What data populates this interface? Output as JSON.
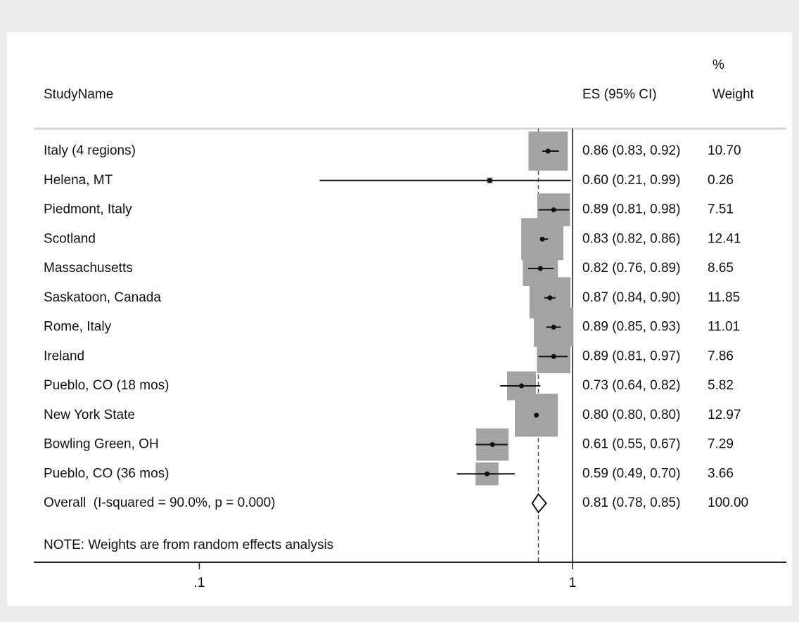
{
  "chart_data": {
    "type": "forest",
    "columns": {
      "study": "StudyName",
      "es": "ES (95% CI)",
      "weight": [
        "%",
        "Weight"
      ]
    },
    "categories": [
      "Italy (4 regions)",
      "Helena, MT",
      "Piedmont, Italy",
      "Scotland",
      "Massachusetts",
      "Saskatoon, Canada",
      "Rome, Italy",
      "Ireland",
      "Pueblo, CO (18 mos)",
      "New York State",
      "Bowling Green, OH",
      "Pueblo, CO (36 mos)"
    ],
    "values": [
      0.86,
      0.6,
      0.89,
      0.83,
      0.82,
      0.87,
      0.89,
      0.89,
      0.73,
      0.8,
      0.61,
      0.59
    ],
    "lower": [
      0.83,
      0.21,
      0.81,
      0.82,
      0.76,
      0.84,
      0.85,
      0.81,
      0.64,
      0.8,
      0.55,
      0.49
    ],
    "upper": [
      0.92,
      0.99,
      0.98,
      0.86,
      0.89,
      0.9,
      0.93,
      0.97,
      0.82,
      0.8,
      0.67,
      0.7
    ],
    "value_labels": [
      "0.86 (0.83, 0.92)",
      "0.60 (0.21, 0.99)",
      "0.89 (0.81, 0.98)",
      "0.83 (0.82, 0.86)",
      "0.82 (0.76, 0.89)",
      "0.87 (0.84, 0.90)",
      "0.89 (0.85, 0.93)",
      "0.89 (0.81, 0.97)",
      "0.73 (0.64, 0.82)",
      "0.80 (0.80, 0.80)",
      "0.61 (0.55, 0.67)",
      "0.59 (0.49, 0.70)"
    ],
    "weights": [
      10.7,
      0.26,
      7.51,
      12.41,
      8.65,
      11.85,
      11.01,
      7.86,
      5.82,
      12.97,
      7.29,
      3.66
    ],
    "weight_labels": [
      "10.70",
      "0.26",
      "7.51",
      "12.41",
      "8.65",
      "11.85",
      "11.01",
      "7.86",
      "5.82",
      "12.97",
      "7.29",
      "3.66"
    ],
    "overall": {
      "label": "Overall  (I-squared = 90.0%, p = 0.000)",
      "value": 0.81,
      "lower": 0.78,
      "upper": 0.85,
      "value_label": "0.81 (0.78, 0.85)",
      "weight": 100,
      "weight_label": "100.00"
    },
    "note": "NOTE: Weights are from random effects analysis",
    "xscale": "log",
    "xlim": [
      0.036,
      3.74
    ],
    "xticks": [
      {
        "value": 0.1,
        "label": ".1"
      },
      1
    ],
    "box_color": "#a3a3a3"
  }
}
